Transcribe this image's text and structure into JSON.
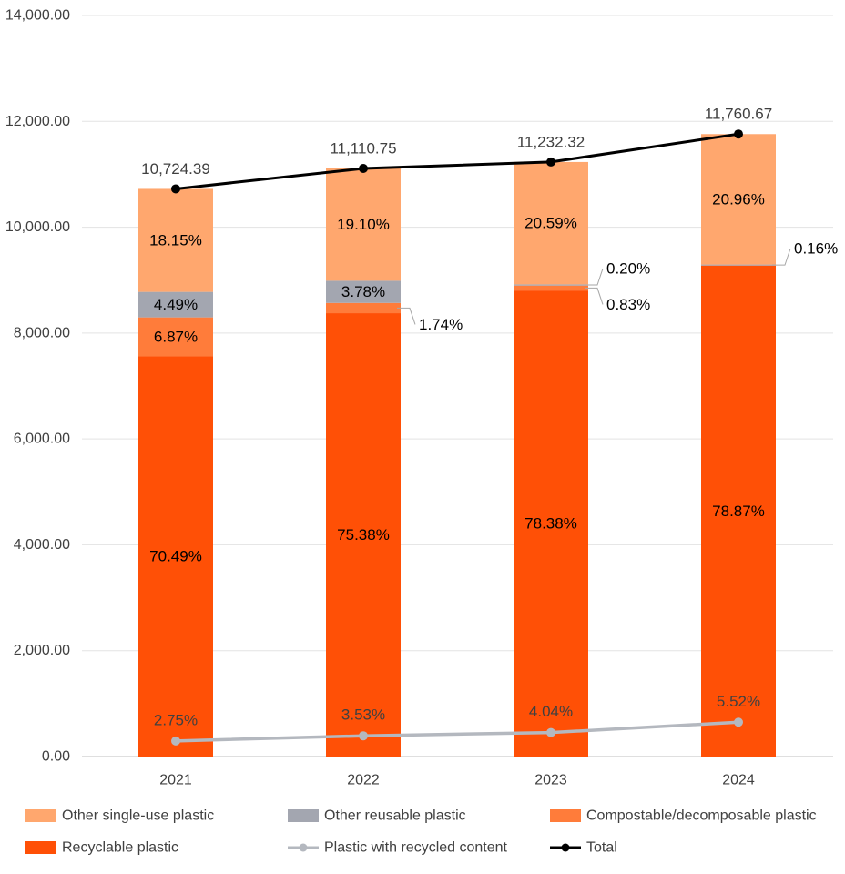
{
  "chart_data": {
    "type": "bar",
    "stacked": true,
    "title": "",
    "xlabel": "",
    "ylabel": "",
    "ylim": [
      0,
      14000
    ],
    "y_ticks": [
      "0.00",
      "2,000.00",
      "4,000.00",
      "6,000.00",
      "8,000.00",
      "10,000.00",
      "12,000.00",
      "14,000.00"
    ],
    "y_tick_values": [
      0,
      2000,
      4000,
      6000,
      8000,
      10000,
      12000,
      14000
    ],
    "grid": "horizontal",
    "legend_position": "bottom",
    "categories": [
      "2021",
      "2022",
      "2023",
      "2024"
    ],
    "series": [
      {
        "name": "Recyclable plastic",
        "kind": "bar",
        "color": "#ff5006",
        "percent": [
          70.49,
          75.38,
          78.38,
          78.87
        ],
        "labels": [
          "70.49%",
          "75.38%",
          "78.38%",
          "78.87%"
        ]
      },
      {
        "name": "Compostable/decomposable plastic",
        "kind": "bar",
        "color": "#ff7c3a",
        "percent": [
          6.87,
          1.74,
          0.83,
          0
        ],
        "labels": [
          "6.87%",
          "1.74%",
          "0.83%",
          ""
        ]
      },
      {
        "name": "Other reusable plastic",
        "kind": "bar",
        "color": "#a3a6b0",
        "percent": [
          4.49,
          3.78,
          0.2,
          0.16
        ],
        "labels": [
          "4.49%",
          "3.78%",
          "0.20%",
          "0.16%"
        ]
      },
      {
        "name": "Other single-use plastic",
        "kind": "bar",
        "color": "#ffa76e",
        "percent": [
          18.15,
          19.1,
          20.59,
          20.96
        ],
        "labels": [
          "18.15%",
          "19.10%",
          "20.59%",
          "20.96%"
        ]
      },
      {
        "name": "Plastic with recycled content",
        "kind": "line",
        "color": "#b4b8bf",
        "percent": [
          2.75,
          3.53,
          4.04,
          5.52
        ],
        "labels": [
          "2.75%",
          "3.53%",
          "4.04%",
          "5.52%"
        ]
      },
      {
        "name": "Total",
        "kind": "line",
        "color": "#000000",
        "values": [
          10724.39,
          11110.75,
          11232.32,
          11760.67
        ],
        "labels": [
          "10,724.39",
          "11,110.75",
          "11,232.32",
          "11,760.67"
        ]
      }
    ],
    "legend": [
      "Other single-use plastic",
      "Other reusable plastic",
      "Compostable/decomposable plastic",
      "Recyclable plastic",
      "Plastic with recycled content",
      "Total"
    ]
  }
}
